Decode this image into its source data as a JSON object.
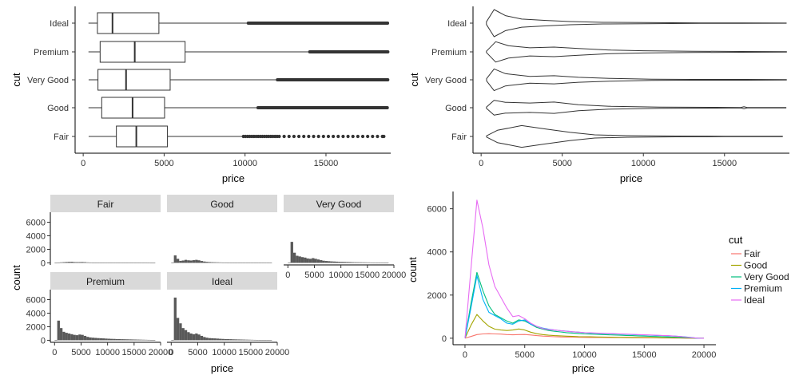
{
  "chart_data": [
    {
      "type": "boxplot",
      "orientation": "horizontal",
      "xlabel": "price",
      "ylabel": "cut",
      "xlim": [
        -500,
        19000
      ],
      "xticks": [
        0,
        5000,
        10000,
        15000
      ],
      "categories": [
        "Fair",
        "Good",
        "Very Good",
        "Premium",
        "Ideal"
      ],
      "boxes": [
        {
          "name": "Fair",
          "whisker_low": 337,
          "q1": 2050,
          "median": 3282,
          "q3": 5206,
          "whisker_high": 9900,
          "outlier_min": 9900,
          "outlier_max": 18574,
          "outliers_dense": false
        },
        {
          "name": "Good",
          "whisker_low": 327,
          "q1": 1145,
          "median": 3050,
          "q3": 5028,
          "whisker_high": 10800,
          "outlier_min": 10800,
          "outlier_max": 18788,
          "outliers_dense": true
        },
        {
          "name": "Very Good",
          "whisker_low": 336,
          "q1": 912,
          "median": 2648,
          "q3": 5373,
          "whisker_high": 12000,
          "outlier_min": 12000,
          "outlier_max": 18818,
          "outliers_dense": true
        },
        {
          "name": "Premium",
          "whisker_low": 326,
          "q1": 1046,
          "median": 3185,
          "q3": 6296,
          "whisker_high": 14000,
          "outlier_min": 14000,
          "outlier_max": 18823,
          "outliers_dense": true
        },
        {
          "name": "Ideal",
          "whisker_low": 326,
          "q1": 878,
          "median": 1810,
          "q3": 4678,
          "whisker_high": 10200,
          "outlier_min": 10200,
          "outlier_max": 18806,
          "outliers_dense": true
        }
      ]
    },
    {
      "type": "violin",
      "orientation": "horizontal",
      "xlabel": "price",
      "ylabel": "cut",
      "xlim": [
        -500,
        19000
      ],
      "xticks": [
        0,
        5000,
        10000,
        15000
      ],
      "categories": [
        "Fair",
        "Good",
        "Very Good",
        "Premium",
        "Ideal"
      ],
      "violins": [
        {
          "name": "Fair",
          "min": 337,
          "max": 18574,
          "profile": [
            [
              337,
              0.05
            ],
            [
              1000,
              0.45
            ],
            [
              2500,
              0.8
            ],
            [
              4000,
              0.55
            ],
            [
              5500,
              0.3
            ],
            [
              7000,
              0.12
            ],
            [
              9000,
              0.06
            ],
            [
              12000,
              0.03
            ],
            [
              15000,
              0.02
            ],
            [
              18574,
              0.01
            ]
          ]
        },
        {
          "name": "Good",
          "min": 327,
          "max": 18788,
          "profile": [
            [
              327,
              0.05
            ],
            [
              800,
              0.55
            ],
            [
              1500,
              0.4
            ],
            [
              3000,
              0.35
            ],
            [
              4500,
              0.42
            ],
            [
              6000,
              0.22
            ],
            [
              8000,
              0.1
            ],
            [
              11000,
              0.05
            ],
            [
              14500,
              0.03
            ],
            [
              16000,
              0.02
            ],
            [
              16200,
              0.07
            ],
            [
              16400,
              0.02
            ],
            [
              18788,
              0.01
            ]
          ]
        },
        {
          "name": "Very Good",
          "min": 336,
          "max": 18818,
          "profile": [
            [
              336,
              0.08
            ],
            [
              800,
              0.8
            ],
            [
              1500,
              0.45
            ],
            [
              3000,
              0.25
            ],
            [
              4500,
              0.3
            ],
            [
              6000,
              0.18
            ],
            [
              8000,
              0.1
            ],
            [
              10500,
              0.05
            ],
            [
              13000,
              0.03
            ],
            [
              16300,
              0.03
            ],
            [
              18818,
              0.01
            ]
          ]
        },
        {
          "name": "Premium",
          "min": 326,
          "max": 18823,
          "profile": [
            [
              326,
              0.05
            ],
            [
              900,
              0.75
            ],
            [
              1700,
              0.45
            ],
            [
              3000,
              0.3
            ],
            [
              4500,
              0.35
            ],
            [
              6000,
              0.25
            ],
            [
              8000,
              0.13
            ],
            [
              10000,
              0.08
            ],
            [
              13000,
              0.05
            ],
            [
              16000,
              0.03
            ],
            [
              18823,
              0.01
            ]
          ]
        },
        {
          "name": "Ideal",
          "min": 326,
          "max": 18806,
          "profile": [
            [
              326,
              0.1
            ],
            [
              800,
              1.0
            ],
            [
              1500,
              0.55
            ],
            [
              2500,
              0.3
            ],
            [
              4000,
              0.2
            ],
            [
              5500,
              0.12
            ],
            [
              7500,
              0.06
            ],
            [
              10000,
              0.04
            ],
            [
              13500,
              0.02
            ],
            [
              16000,
              0.01
            ],
            [
              18806,
              0.005
            ]
          ]
        }
      ]
    },
    {
      "type": "histogram",
      "faceted": true,
      "xlabel": "price",
      "ylabel": "count",
      "xlim": [
        -800,
        20000
      ],
      "xticks": [
        0,
        5000,
        10000,
        15000,
        20000
      ],
      "xtick_labels": [
        "0",
        "5000",
        "10000",
        "15000",
        "20000"
      ],
      "ylim": [
        -300,
        7000
      ],
      "yticks": [
        0,
        2000,
        4000,
        6000
      ],
      "bin_width": 500,
      "bin_starts": [
        0,
        500,
        1000,
        1500,
        2000,
        2500,
        3000,
        3500,
        4000,
        4500,
        5000,
        5500,
        6000,
        6500,
        7000,
        7500,
        8000,
        8500,
        9000,
        9500,
        10000,
        10500,
        11000,
        11500,
        12000,
        12500,
        13000,
        13500,
        14000,
        14500,
        15000,
        15500,
        16000,
        16500,
        17000,
        17500,
        18000,
        18500
      ],
      "facets": [
        {
          "name": "Fair",
          "counts": [
            2,
            40,
            80,
            105,
            130,
            150,
            160,
            120,
            110,
            115,
            125,
            105,
            75,
            60,
            50,
            40,
            35,
            30,
            25,
            25,
            20,
            20,
            18,
            15,
            15,
            10,
            15,
            12,
            10,
            10,
            8,
            8,
            6,
            6,
            5,
            4,
            3,
            2
          ]
        },
        {
          "name": "Good",
          "counts": [
            10,
            1100,
            600,
            300,
            350,
            450,
            380,
            350,
            400,
            450,
            380,
            280,
            200,
            150,
            120,
            100,
            90,
            80,
            70,
            60,
            60,
            55,
            50,
            45,
            40,
            30,
            35,
            30,
            28,
            25,
            25,
            20,
            20,
            18,
            15,
            15,
            10,
            5
          ]
        },
        {
          "name": "Very Good",
          "counts": [
            30,
            3100,
            1500,
            1050,
            950,
            850,
            780,
            650,
            600,
            700,
            600,
            500,
            400,
            320,
            280,
            250,
            220,
            200,
            180,
            160,
            150,
            140,
            130,
            120,
            100,
            95,
            90,
            85,
            80,
            75,
            70,
            60,
            55,
            50,
            45,
            40,
            35,
            20
          ]
        },
        {
          "name": "Premium",
          "counts": [
            20,
            2900,
            1800,
            1250,
            1100,
            1000,
            900,
            800,
            750,
            850,
            800,
            650,
            500,
            420,
            380,
            350,
            320,
            300,
            280,
            250,
            230,
            210,
            200,
            180,
            170,
            160,
            150,
            140,
            130,
            120,
            110,
            100,
            90,
            80,
            70,
            60,
            50,
            30
          ]
        },
        {
          "name": "Ideal",
          "counts": [
            40,
            6300,
            3300,
            2500,
            1800,
            1500,
            1200,
            1000,
            900,
            1000,
            850,
            650,
            480,
            380,
            320,
            300,
            280,
            250,
            220,
            200,
            180,
            170,
            160,
            140,
            130,
            120,
            110,
            100,
            90,
            80,
            70,
            60,
            50,
            45,
            40,
            35,
            30,
            15
          ]
        }
      ]
    },
    {
      "type": "line",
      "xlabel": "price",
      "ylabel": "count",
      "xlim": [
        -1000,
        21000
      ],
      "ylim": [
        -300,
        6800
      ],
      "xticks": [
        0,
        5000,
        10000,
        15000,
        20000
      ],
      "yticks": [
        0,
        2000,
        4000,
        6000
      ],
      "legend_title": "cut",
      "legend_position": "right",
      "x": [
        0,
        500,
        1000,
        1500,
        2000,
        2500,
        3000,
        3500,
        4000,
        4500,
        5000,
        5500,
        6000,
        6500,
        7000,
        7500,
        8000,
        8500,
        9000,
        9500,
        10000,
        10500,
        11000,
        11500,
        12000,
        12500,
        13000,
        13500,
        14000,
        14500,
        15000,
        15500,
        16000,
        16500,
        17000,
        17500,
        18000,
        18500,
        19000,
        19500,
        20000
      ],
      "series": [
        {
          "name": "Fair",
          "color": "#F8766D",
          "values": [
            0,
            80,
            170,
            200,
            210,
            200,
            190,
            170,
            160,
            170,
            175,
            150,
            120,
            100,
            85,
            70,
            60,
            55,
            50,
            45,
            40,
            38,
            35,
            32,
            30,
            28,
            28,
            25,
            22,
            20,
            18,
            16,
            14,
            12,
            10,
            8,
            6,
            4,
            2,
            0,
            0
          ]
        },
        {
          "name": "Good",
          "color": "#A3A500",
          "values": [
            0,
            600,
            1100,
            800,
            550,
            420,
            380,
            360,
            380,
            430,
            380,
            280,
            210,
            170,
            140,
            120,
            110,
            95,
            85,
            75,
            70,
            65,
            60,
            55,
            50,
            45,
            42,
            40,
            38,
            35,
            32,
            28,
            25,
            22,
            20,
            18,
            15,
            10,
            5,
            0,
            0
          ]
        },
        {
          "name": "Very Good",
          "color": "#00BF7D",
          "values": [
            0,
            1600,
            3050,
            2200,
            1500,
            1100,
            950,
            800,
            700,
            850,
            800,
            650,
            500,
            420,
            360,
            320,
            290,
            260,
            240,
            220,
            200,
            190,
            180,
            170,
            160,
            150,
            140,
            130,
            120,
            110,
            100,
            90,
            80,
            70,
            60,
            50,
            40,
            30,
            15,
            0,
            0
          ]
        },
        {
          "name": "Premium",
          "color": "#00B0F6",
          "values": [
            0,
            1400,
            2900,
            1800,
            1200,
            1050,
            900,
            700,
            650,
            800,
            850,
            650,
            550,
            470,
            420,
            380,
            350,
            330,
            300,
            280,
            260,
            240,
            230,
            220,
            210,
            200,
            190,
            180,
            170,
            160,
            150,
            140,
            130,
            120,
            110,
            100,
            80,
            60,
            30,
            0,
            0
          ]
        },
        {
          "name": "Ideal",
          "color": "#E76BF3",
          "values": [
            0,
            3200,
            6400,
            5100,
            3400,
            2400,
            1900,
            1400,
            1000,
            1050,
            900,
            700,
            550,
            450,
            400,
            380,
            350,
            320,
            300,
            280,
            260,
            250,
            240,
            230,
            220,
            210,
            200,
            190,
            180,
            170,
            160,
            150,
            140,
            130,
            120,
            100,
            80,
            50,
            25,
            5,
            0
          ]
        }
      ]
    }
  ]
}
